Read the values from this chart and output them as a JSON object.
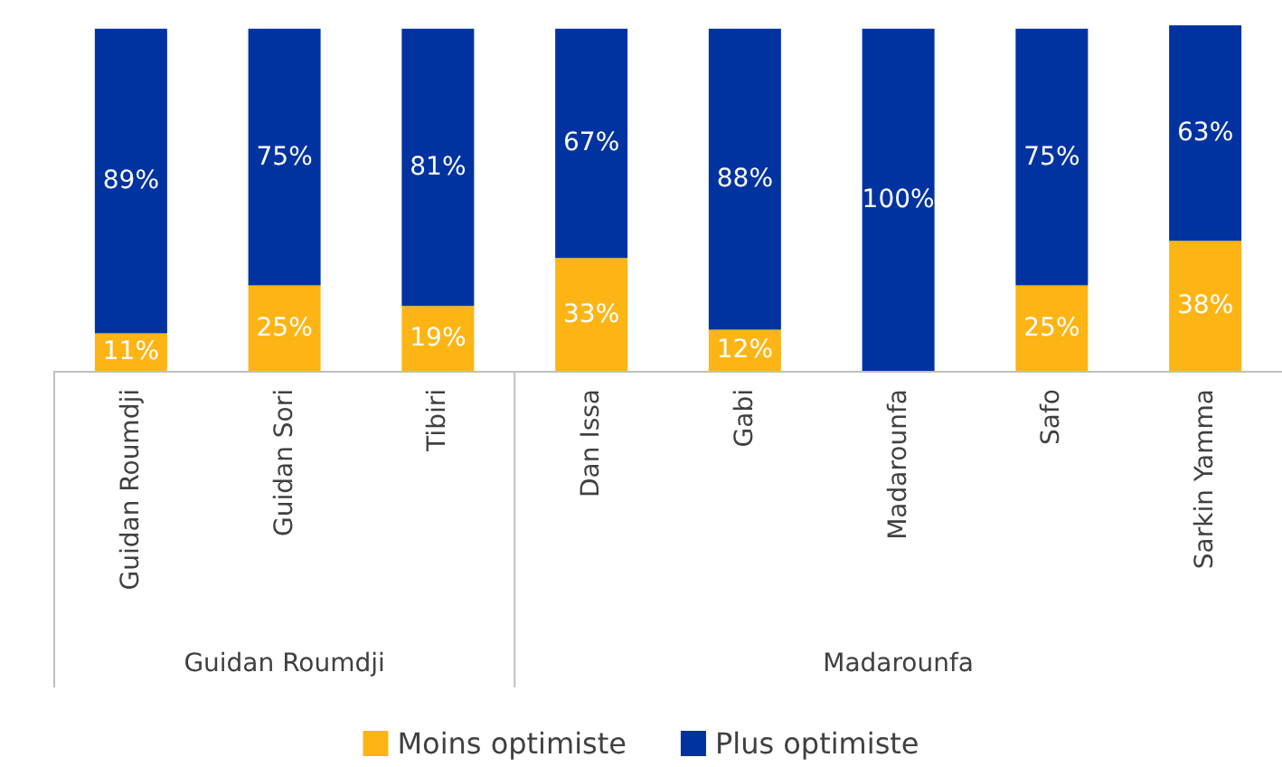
{
  "chart_data": {
    "type": "bar",
    "stacked": true,
    "categories": [
      "Guidan Roumdji",
      "Guidan Sori",
      "Tibiri",
      "Dan Issa",
      "Gabi",
      "Madarounfa",
      "Safo",
      "Sarkin Yamma"
    ],
    "series": [
      {
        "name": "Moins optimiste",
        "color": "#fdb515",
        "values": [
          11,
          25,
          19,
          33,
          12,
          0,
          25,
          38
        ],
        "value_labels": [
          "11%",
          "25%",
          "19%",
          "33%",
          "12%",
          null,
          "25%",
          "38%"
        ]
      },
      {
        "name": "Plus optimiste",
        "color": "#0033a0",
        "values": [
          89,
          75,
          81,
          67,
          88,
          100,
          75,
          63
        ],
        "value_labels": [
          "89%",
          "75%",
          "81%",
          "67%",
          "88%",
          "100%",
          "75%",
          "63%"
        ]
      }
    ],
    "annotations": [
      "Guidan Roumdji",
      "Madarounfa"
    ],
    "legend": "bottom"
  }
}
